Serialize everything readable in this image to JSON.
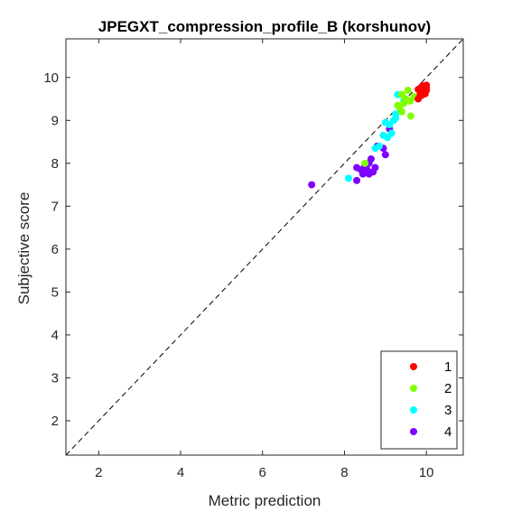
{
  "chart_data": {
    "type": "scatter",
    "title": "JPEGXT_compression_profile_B (korshunov)",
    "xlabel": "Metric prediction",
    "ylabel": "Subjective score",
    "xlim": [
      1.2,
      10.9
    ],
    "ylim": [
      1.2,
      10.9
    ],
    "xticks": [
      2,
      4,
      6,
      8,
      10
    ],
    "yticks": [
      2,
      3,
      4,
      5,
      6,
      7,
      8,
      9,
      10
    ],
    "grid": false,
    "reference_line": {
      "style": "dashed",
      "from": [
        1.2,
        1.2
      ],
      "to": [
        10.9,
        10.9
      ]
    },
    "legend_position": "bottom-right",
    "series": [
      {
        "name": "1",
        "color": "#ff0000",
        "points": [
          [
            9.8,
            9.72
          ],
          [
            9.85,
            9.6
          ],
          [
            9.9,
            9.8
          ],
          [
            9.95,
            9.75
          ],
          [
            10.0,
            9.7
          ],
          [
            10.0,
            9.82
          ],
          [
            9.92,
            9.66
          ],
          [
            9.88,
            9.58
          ],
          [
            9.8,
            9.5
          ],
          [
            9.97,
            9.62
          ],
          [
            10.0,
            9.78
          ],
          [
            9.9,
            9.72
          ],
          [
            9.93,
            9.8
          ],
          [
            9.86,
            9.68
          ],
          [
            10.0,
            9.74
          ]
        ]
      },
      {
        "name": "2",
        "color": "#80ff00",
        "points": [
          [
            9.4,
            9.6
          ],
          [
            9.55,
            9.7
          ],
          [
            9.3,
            9.35
          ],
          [
            9.5,
            9.5
          ],
          [
            9.6,
            9.45
          ],
          [
            9.45,
            9.4
          ],
          [
            9.62,
            9.1
          ],
          [
            9.7,
            9.55
          ],
          [
            9.35,
            9.3
          ],
          [
            8.5,
            8.0
          ],
          [
            9.4,
            9.2
          ]
        ]
      },
      {
        "name": "3",
        "color": "#00ffff",
        "points": [
          [
            9.3,
            9.6
          ],
          [
            9.45,
            9.45
          ],
          [
            9.35,
            9.3
          ],
          [
            9.25,
            9.15
          ],
          [
            9.2,
            9.0
          ],
          [
            9.1,
            8.9
          ],
          [
            9.0,
            8.95
          ],
          [
            9.15,
            8.7
          ],
          [
            8.95,
            8.65
          ],
          [
            9.05,
            8.6
          ],
          [
            8.85,
            8.4
          ],
          [
            8.75,
            8.35
          ],
          [
            8.1,
            7.65
          ],
          [
            9.25,
            9.05
          ]
        ]
      },
      {
        "name": "4",
        "color": "#8000ff",
        "points": [
          [
            7.2,
            7.5
          ],
          [
            8.3,
            7.6
          ],
          [
            8.3,
            7.9
          ],
          [
            8.4,
            7.85
          ],
          [
            8.45,
            7.75
          ],
          [
            8.5,
            7.95
          ],
          [
            8.55,
            7.85
          ],
          [
            8.6,
            8.0
          ],
          [
            8.65,
            8.1
          ],
          [
            8.7,
            7.8
          ],
          [
            8.75,
            7.9
          ],
          [
            8.6,
            7.75
          ],
          [
            8.8,
            8.4
          ],
          [
            8.95,
            8.35
          ],
          [
            9.0,
            8.2
          ],
          [
            9.1,
            8.8
          ]
        ]
      }
    ]
  }
}
